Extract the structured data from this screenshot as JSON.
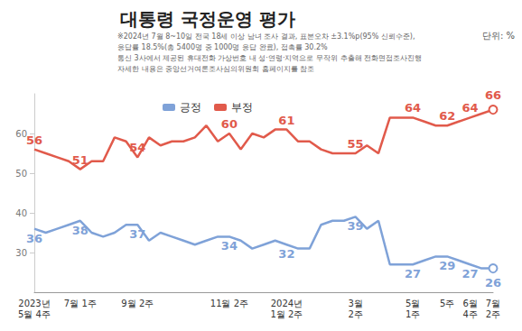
{
  "chart_data": {
    "type": "line",
    "title": "대통령 국정운영 평가",
    "ylabel": "단위: %",
    "annotations": [
      "※2024년 7월 8~10일 전국 18세 이상 남녀 조사 결과, 표본오차 ±3.1%p(95% 신뢰수준),",
      "응답률 18.5%(총 5400명 중 1000명 응답 완료), 접촉률 30.2%",
      "통신 3사에서 제공된 휴대전화 가상번호 내 성·연령·지역으로 무작위 추출해 전화면접조사진행",
      "자세한 내용은 중앙선거여론조사심의위원회 홈페이지를 참조"
    ],
    "categories": [
      "2023년\n5월 4주",
      null,
      null,
      null,
      "7월 1주",
      null,
      null,
      null,
      null,
      "9월 2주",
      null,
      null,
      null,
      null,
      null,
      null,
      null,
      "11월 2주",
      null,
      null,
      null,
      null,
      "2024년\n1월 2주",
      null,
      null,
      null,
      null,
      null,
      "3월\n2주",
      null,
      null,
      null,
      null,
      "5월\n1주",
      null,
      null,
      "5주",
      null,
      "6월\n4주",
      null,
      "7월\n2주"
    ],
    "series": [
      {
        "name": "긍정",
        "color": "#7fa2d8",
        "values": [
          36,
          35,
          36,
          37,
          38,
          35,
          34,
          35,
          37,
          37,
          33,
          35,
          34,
          33,
          32,
          33,
          34,
          34,
          33,
          31,
          32,
          33,
          32,
          31,
          31,
          37,
          38,
          38,
          39,
          36,
          38,
          27,
          27,
          27,
          28,
          29,
          29,
          28,
          27,
          26,
          26
        ],
        "value_labels": [
          "36",
          null,
          null,
          null,
          "38",
          null,
          null,
          null,
          null,
          "37",
          null,
          null,
          null,
          null,
          null,
          null,
          null,
          "34",
          null,
          null,
          null,
          null,
          "32",
          null,
          null,
          null,
          null,
          null,
          "39",
          null,
          null,
          null,
          null,
          "27",
          null,
          null,
          "29",
          null,
          "27",
          null,
          "26"
        ]
      },
      {
        "name": "부정",
        "color": "#e15a4b",
        "values": [
          56,
          55,
          54,
          53,
          51,
          53,
          53,
          59,
          58,
          54,
          59,
          57,
          58,
          58,
          59,
          62,
          58,
          60,
          56,
          60,
          59,
          61,
          61,
          58,
          58,
          56,
          55,
          55,
          55,
          57,
          55,
          64,
          64,
          64,
          63,
          62,
          62,
          63,
          64,
          65,
          66
        ],
        "value_labels": [
          "56",
          null,
          null,
          null,
          "51",
          null,
          null,
          null,
          null,
          "54",
          null,
          null,
          null,
          null,
          null,
          null,
          null,
          "60",
          null,
          null,
          null,
          null,
          "61",
          null,
          null,
          null,
          null,
          null,
          "55",
          null,
          null,
          null,
          null,
          "64",
          null,
          null,
          "62",
          null,
          "64",
          null,
          "66"
        ]
      }
    ],
    "ylim": [
      20,
      70
    ],
    "yticks": [
      30,
      40,
      50,
      60
    ],
    "grid": false,
    "legend": "top-left"
  }
}
